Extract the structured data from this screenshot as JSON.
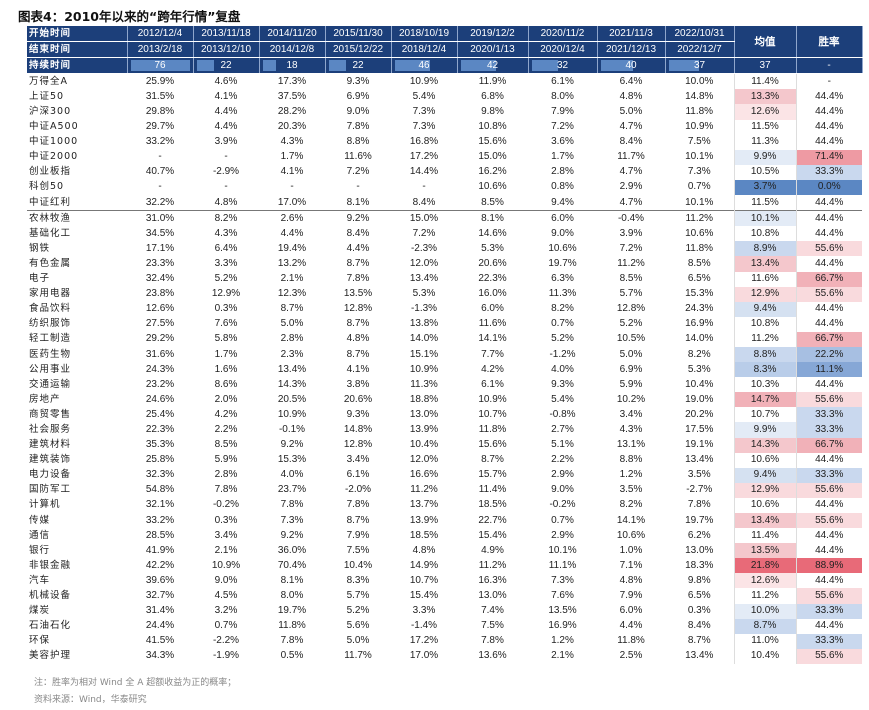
{
  "title": "图表4：2010年以来的“跨年行情”复盘",
  "header": {
    "start_label": "开始时间",
    "end_label": "结束时间",
    "duration_label": "持续时间",
    "avg_label": "均值",
    "win_label": "胜率",
    "start_dates": [
      "2012/12/4",
      "2013/11/18",
      "2014/11/20",
      "2015/11/30",
      "2018/10/19",
      "2019/12/2",
      "2020/11/2",
      "2021/11/3",
      "2022/10/31"
    ],
    "end_dates": [
      "2013/2/18",
      "2013/12/10",
      "2014/12/8",
      "2015/12/22",
      "2018/12/4",
      "2020/1/13",
      "2020/12/4",
      "2021/12/13",
      "2022/12/7"
    ],
    "durations": [
      76,
      22,
      18,
      22,
      46,
      42,
      32,
      40,
      37
    ],
    "duration_avg": "37",
    "duration_win": "-"
  },
  "rows": [
    {
      "name": "万得全A",
      "values": [
        "25.9%",
        "4.6%",
        "17.3%",
        "9.3%",
        "10.9%",
        "11.9%",
        "6.1%",
        "6.4%",
        "10.0%"
      ],
      "avg": "11.4%",
      "win": "-",
      "avg_bg": "#ffffff",
      "win_bg": "#ffffff"
    },
    {
      "name": "上证50",
      "values": [
        "31.5%",
        "4.1%",
        "37.5%",
        "6.9%",
        "5.4%",
        "6.8%",
        "8.0%",
        "4.8%",
        "14.8%"
      ],
      "avg": "13.3%",
      "win": "44.4%",
      "avg_bg": "#f4c7cc",
      "win_bg": "#ffffff"
    },
    {
      "name": "沪深300",
      "values": [
        "29.8%",
        "4.4%",
        "28.2%",
        "9.0%",
        "7.3%",
        "9.8%",
        "7.9%",
        "5.0%",
        "11.8%"
      ],
      "avg": "12.6%",
      "win": "44.4%",
      "avg_bg": "#fbe4e6",
      "win_bg": "#ffffff"
    },
    {
      "name": "中证A500",
      "values": [
        "29.7%",
        "4.4%",
        "20.3%",
        "7.8%",
        "7.3%",
        "10.8%",
        "7.2%",
        "4.7%",
        "10.9%"
      ],
      "avg": "11.5%",
      "win": "44.4%",
      "avg_bg": "#ffffff",
      "win_bg": "#ffffff"
    },
    {
      "name": "中证1000",
      "values": [
        "33.2%",
        "3.9%",
        "4.3%",
        "8.8%",
        "16.8%",
        "15.6%",
        "3.6%",
        "8.4%",
        "7.5%"
      ],
      "avg": "11.3%",
      "win": "44.4%",
      "avg_bg": "#ffffff",
      "win_bg": "#ffffff"
    },
    {
      "name": "中证2000",
      "values": [
        "-",
        "-",
        "1.7%",
        "11.6%",
        "17.2%",
        "15.0%",
        "1.7%",
        "11.7%",
        "10.1%"
      ],
      "avg": "9.9%",
      "win": "71.4%",
      "avg_bg": "#e3ebf6",
      "win_bg": "#ee9aa3"
    },
    {
      "name": "创业板指",
      "values": [
        "40.7%",
        "-2.9%",
        "4.1%",
        "7.2%",
        "14.4%",
        "16.2%",
        "2.8%",
        "4.7%",
        "7.3%"
      ],
      "avg": "10.5%",
      "win": "33.3%",
      "avg_bg": "#ffffff",
      "win_bg": "#c9d8ee"
    },
    {
      "name": "科创50",
      "values": [
        "-",
        "-",
        "-",
        "-",
        "-",
        "10.6%",
        "0.8%",
        "2.9%",
        "0.7%"
      ],
      "avg": "3.7%",
      "win": "0.0%",
      "avg_bg": "#5b87c3",
      "win_bg": "#5b87c3"
    },
    {
      "name": "中证红利",
      "values": [
        "32.2%",
        "4.8%",
        "17.0%",
        "8.1%",
        "8.4%",
        "8.5%",
        "9.4%",
        "4.7%",
        "10.1%"
      ],
      "avg": "11.5%",
      "win": "44.4%",
      "avg_bg": "#ffffff",
      "win_bg": "#ffffff"
    },
    {
      "name": "农林牧渔",
      "values": [
        "31.0%",
        "8.2%",
        "2.6%",
        "9.2%",
        "15.0%",
        "8.1%",
        "6.0%",
        "-0.4%",
        "11.2%"
      ],
      "avg": "10.1%",
      "win": "44.4%",
      "avg_bg": "#e3ebf6",
      "win_bg": "#ffffff",
      "sep": true
    },
    {
      "name": "基础化工",
      "values": [
        "34.5%",
        "4.3%",
        "4.4%",
        "8.4%",
        "7.2%",
        "14.6%",
        "9.0%",
        "3.9%",
        "10.6%"
      ],
      "avg": "10.8%",
      "win": "44.4%",
      "avg_bg": "#ffffff",
      "win_bg": "#ffffff"
    },
    {
      "name": "钢铁",
      "values": [
        "17.1%",
        "6.4%",
        "19.4%",
        "4.4%",
        "-2.3%",
        "5.3%",
        "10.6%",
        "7.2%",
        "11.8%"
      ],
      "avg": "8.9%",
      "win": "55.6%",
      "avg_bg": "#c9d8ee",
      "win_bg": "#f9dadd"
    },
    {
      "name": "有色金属",
      "values": [
        "23.3%",
        "3.3%",
        "13.2%",
        "8.7%",
        "12.0%",
        "20.6%",
        "19.7%",
        "11.2%",
        "8.5%"
      ],
      "avg": "13.4%",
      "win": "44.4%",
      "avg_bg": "#f4c7cc",
      "win_bg": "#ffffff"
    },
    {
      "name": "电子",
      "values": [
        "32.4%",
        "5.2%",
        "2.1%",
        "7.8%",
        "13.4%",
        "22.3%",
        "6.3%",
        "8.5%",
        "6.5%"
      ],
      "avg": "11.6%",
      "win": "66.7%",
      "avg_bg": "#ffffff",
      "win_bg": "#f1b1b8"
    },
    {
      "name": "家用电器",
      "values": [
        "23.8%",
        "12.9%",
        "12.3%",
        "13.5%",
        "5.3%",
        "16.0%",
        "11.3%",
        "5.7%",
        "15.3%"
      ],
      "avg": "12.9%",
      "win": "55.6%",
      "avg_bg": "#f9dadd",
      "win_bg": "#f9dadd"
    },
    {
      "name": "食品饮料",
      "values": [
        "12.6%",
        "0.3%",
        "8.7%",
        "12.8%",
        "-1.3%",
        "6.0%",
        "8.2%",
        "12.8%",
        "24.3%"
      ],
      "avg": "9.4%",
      "win": "44.4%",
      "avg_bg": "#d5e1f1",
      "win_bg": "#ffffff"
    },
    {
      "name": "纺织服饰",
      "values": [
        "27.5%",
        "7.6%",
        "5.0%",
        "8.7%",
        "13.8%",
        "11.6%",
        "0.7%",
        "5.2%",
        "16.9%"
      ],
      "avg": "10.8%",
      "win": "44.4%",
      "avg_bg": "#ffffff",
      "win_bg": "#ffffff"
    },
    {
      "name": "轻工制造",
      "values": [
        "29.2%",
        "5.8%",
        "2.8%",
        "4.8%",
        "14.0%",
        "14.1%",
        "5.2%",
        "10.5%",
        "14.0%"
      ],
      "avg": "11.2%",
      "win": "66.7%",
      "avg_bg": "#ffffff",
      "win_bg": "#f1b1b8"
    },
    {
      "name": "医药生物",
      "values": [
        "31.6%",
        "1.7%",
        "2.3%",
        "8.7%",
        "15.1%",
        "7.7%",
        "-1.2%",
        "5.0%",
        "8.2%"
      ],
      "avg": "8.8%",
      "win": "22.2%",
      "avg_bg": "#c9d8ee",
      "win_bg": "#a7bfe2"
    },
    {
      "name": "公用事业",
      "values": [
        "24.3%",
        "1.6%",
        "13.4%",
        "4.1%",
        "10.9%",
        "4.2%",
        "4.0%",
        "6.9%",
        "5.3%"
      ],
      "avg": "8.3%",
      "win": "11.1%",
      "avg_bg": "#b9cde9",
      "win_bg": "#86a7d6"
    },
    {
      "name": "交通运输",
      "values": [
        "23.2%",
        "8.6%",
        "14.3%",
        "3.8%",
        "11.3%",
        "6.1%",
        "9.3%",
        "5.9%",
        "10.4%"
      ],
      "avg": "10.3%",
      "win": "44.4%",
      "avg_bg": "#ffffff",
      "win_bg": "#ffffff"
    },
    {
      "name": "房地产",
      "values": [
        "24.6%",
        "2.0%",
        "20.5%",
        "20.6%",
        "18.8%",
        "10.9%",
        "5.4%",
        "10.2%",
        "19.0%"
      ],
      "avg": "14.7%",
      "win": "55.6%",
      "avg_bg": "#f1b1b8",
      "win_bg": "#f9dadd"
    },
    {
      "name": "商贸零售",
      "values": [
        "25.4%",
        "4.2%",
        "10.9%",
        "9.3%",
        "13.0%",
        "10.7%",
        "-0.8%",
        "3.4%",
        "20.2%"
      ],
      "avg": "10.7%",
      "win": "33.3%",
      "avg_bg": "#ffffff",
      "win_bg": "#c9d8ee"
    },
    {
      "name": "社会服务",
      "values": [
        "22.3%",
        "2.2%",
        "-0.1%",
        "14.8%",
        "13.9%",
        "11.8%",
        "2.7%",
        "4.3%",
        "17.5%"
      ],
      "avg": "9.9%",
      "win": "33.3%",
      "avg_bg": "#e3ebf6",
      "win_bg": "#c9d8ee"
    },
    {
      "name": "建筑材料",
      "values": [
        "35.3%",
        "8.5%",
        "9.2%",
        "12.8%",
        "10.4%",
        "15.6%",
        "5.1%",
        "13.1%",
        "19.1%"
      ],
      "avg": "14.3%",
      "win": "66.7%",
      "avg_bg": "#f4c7cc",
      "win_bg": "#f1b1b8"
    },
    {
      "name": "建筑装饰",
      "values": [
        "25.8%",
        "5.9%",
        "15.3%",
        "3.4%",
        "12.0%",
        "8.7%",
        "2.2%",
        "8.8%",
        "13.4%"
      ],
      "avg": "10.6%",
      "win": "44.4%",
      "avg_bg": "#ffffff",
      "win_bg": "#ffffff"
    },
    {
      "name": "电力设备",
      "values": [
        "32.3%",
        "2.8%",
        "4.0%",
        "6.1%",
        "16.6%",
        "15.7%",
        "2.9%",
        "1.2%",
        "3.5%"
      ],
      "avg": "9.4%",
      "win": "33.3%",
      "avg_bg": "#d5e1f1",
      "win_bg": "#c9d8ee"
    },
    {
      "name": "国防军工",
      "values": [
        "54.8%",
        "7.8%",
        "23.7%",
        "-2.0%",
        "11.2%",
        "11.4%",
        "9.0%",
        "3.5%",
        "-2.7%"
      ],
      "avg": "12.9%",
      "win": "55.6%",
      "avg_bg": "#f9dadd",
      "win_bg": "#f9dadd"
    },
    {
      "name": "计算机",
      "values": [
        "32.1%",
        "-0.2%",
        "7.8%",
        "7.8%",
        "13.7%",
        "18.5%",
        "-0.2%",
        "8.2%",
        "7.8%"
      ],
      "avg": "10.6%",
      "win": "44.4%",
      "avg_bg": "#ffffff",
      "win_bg": "#ffffff"
    },
    {
      "name": "传媒",
      "values": [
        "33.2%",
        "0.3%",
        "7.3%",
        "8.7%",
        "13.9%",
        "22.7%",
        "0.7%",
        "14.1%",
        "19.7%"
      ],
      "avg": "13.4%",
      "win": "55.6%",
      "avg_bg": "#f4c7cc",
      "win_bg": "#f9dadd"
    },
    {
      "name": "通信",
      "values": [
        "28.5%",
        "3.4%",
        "9.2%",
        "7.9%",
        "18.5%",
        "15.4%",
        "2.9%",
        "10.6%",
        "6.2%"
      ],
      "avg": "11.4%",
      "win": "44.4%",
      "avg_bg": "#ffffff",
      "win_bg": "#ffffff"
    },
    {
      "name": "银行",
      "values": [
        "41.9%",
        "2.1%",
        "36.0%",
        "7.5%",
        "4.8%",
        "4.9%",
        "10.1%",
        "1.0%",
        "13.0%"
      ],
      "avg": "13.5%",
      "win": "44.4%",
      "avg_bg": "#f4c7cc",
      "win_bg": "#ffffff"
    },
    {
      "name": "非银金融",
      "values": [
        "42.2%",
        "10.9%",
        "70.4%",
        "10.4%",
        "14.9%",
        "11.2%",
        "11.1%",
        "7.1%",
        "18.3%"
      ],
      "avg": "21.8%",
      "win": "88.9%",
      "avg_bg": "#e86a78",
      "win_bg": "#e86a78"
    },
    {
      "name": "汽车",
      "values": [
        "39.6%",
        "9.0%",
        "8.1%",
        "8.3%",
        "10.7%",
        "16.3%",
        "7.3%",
        "4.8%",
        "9.8%"
      ],
      "avg": "12.6%",
      "win": "44.4%",
      "avg_bg": "#fbe4e6",
      "win_bg": "#ffffff"
    },
    {
      "name": "机械设备",
      "values": [
        "32.7%",
        "4.5%",
        "8.0%",
        "5.7%",
        "15.4%",
        "13.0%",
        "7.6%",
        "7.9%",
        "6.5%"
      ],
      "avg": "11.2%",
      "win": "55.6%",
      "avg_bg": "#ffffff",
      "win_bg": "#f9dadd"
    },
    {
      "name": "煤炭",
      "values": [
        "31.4%",
        "3.2%",
        "19.7%",
        "5.2%",
        "3.3%",
        "7.4%",
        "13.5%",
        "6.0%",
        "0.3%"
      ],
      "avg": "10.0%",
      "win": "33.3%",
      "avg_bg": "#e3ebf6",
      "win_bg": "#c9d8ee"
    },
    {
      "name": "石油石化",
      "values": [
        "24.4%",
        "0.7%",
        "11.8%",
        "5.6%",
        "-1.4%",
        "7.5%",
        "16.9%",
        "4.4%",
        "8.4%"
      ],
      "avg": "8.7%",
      "win": "44.4%",
      "avg_bg": "#c9d8ee",
      "win_bg": "#ffffff"
    },
    {
      "name": "环保",
      "values": [
        "41.5%",
        "-2.2%",
        "7.8%",
        "5.0%",
        "17.2%",
        "7.8%",
        "1.2%",
        "11.8%",
        "8.7%"
      ],
      "avg": "11.0%",
      "win": "33.3%",
      "avg_bg": "#ffffff",
      "win_bg": "#c9d8ee"
    },
    {
      "name": "美容护理",
      "values": [
        "34.3%",
        "-1.9%",
        "0.5%",
        "11.7%",
        "17.0%",
        "13.6%",
        "2.1%",
        "2.5%",
        "13.4%"
      ],
      "avg": "10.4%",
      "win": "55.6%",
      "avg_bg": "#ffffff",
      "win_bg": "#f9dadd"
    }
  ],
  "note": "注：胜率为相对 Wind 全 A 超额收益为正的概率；",
  "source": "资料来源：Wind，华泰研究",
  "colors": {
    "header_bg": "#1c3f7a",
    "duration_bar": "#5b87c3",
    "header_text": "#ffffff"
  }
}
